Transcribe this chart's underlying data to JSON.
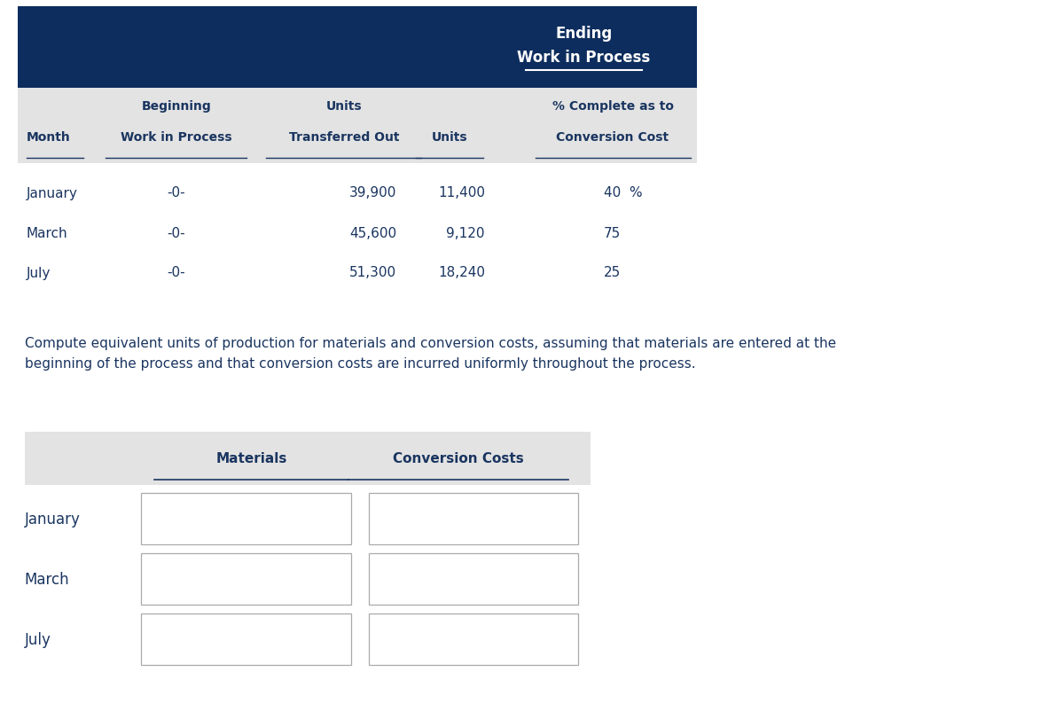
{
  "bg_color": "#ffffff",
  "header_bg_color": "#0d2d5e",
  "subheader_bg_color": "#e3e3e3",
  "dark_navy": "#1a3560",
  "white": "#ffffff",
  "top_table": {
    "rows": [
      [
        "January",
        "-0-",
        "39,900",
        "11,400",
        "40  %"
      ],
      [
        "March",
        "-0-",
        "45,600",
        "9,120",
        "75"
      ],
      [
        "July",
        "-0-",
        "51,300",
        "18,240",
        "25"
      ]
    ]
  },
  "instruction_text": "Compute equivalent units of production for materials and conversion costs, assuming that materials are entered at the\nbeginning of the process and that conversion costs are incurred uniformly throughout the process.",
  "bottom_table": {
    "header_labels": [
      "Materials",
      "Conversion Costs"
    ],
    "rows": [
      "January",
      "March",
      "July"
    ]
  }
}
